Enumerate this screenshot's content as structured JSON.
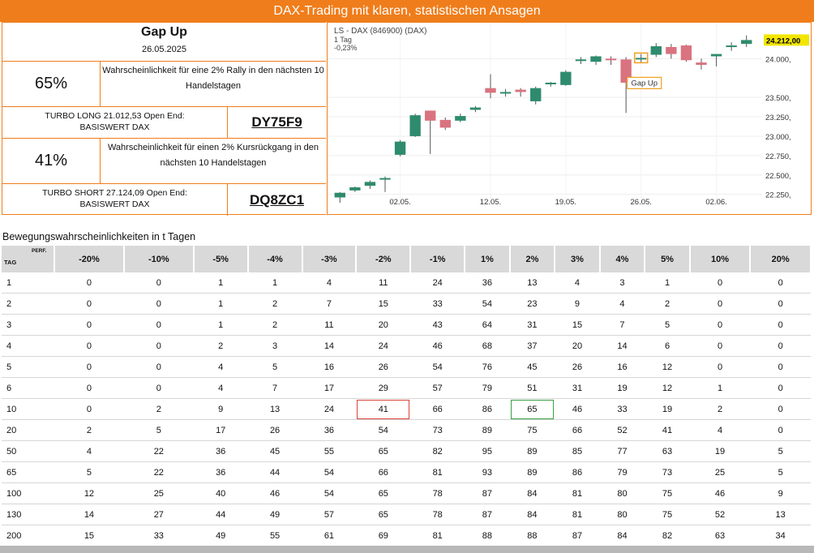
{
  "banner": {
    "title": "DAX-Trading mit klaren, statistischen Ansagen"
  },
  "signal": {
    "title": "Gap Up",
    "date": "26.05.2025",
    "rally_pct": "65%",
    "rally_text": "Wahrscheinlichkeit für eine 2% Rally in den nächsten 10 Handelstagen",
    "long_label": "TURBO LONG 21.012,53 Open End: BASISWERT DAX",
    "long_code": "DY75F9",
    "drop_pct": "41%",
    "drop_text": "Wahrscheinlichkeit für einen 2% Kursrückgang in den nächsten 10 Handelstagen",
    "short_label": "TURBO SHORT 27.124,09 Open End: BASISWERT DAX",
    "short_code": "DQ8ZC1"
  },
  "chart_data": {
    "type": "candlestick",
    "title": "LS - DAX (846900) (DAX)",
    "subtitle": "1 Tag",
    "change": "-0,23%",
    "last_price_label": "24.212,00",
    "annotation": "Gap Up",
    "ylim": [
      22100,
      24380
    ],
    "yticks": [
      24000,
      23500,
      23250,
      23000,
      22750,
      22500,
      22250
    ],
    "ytick_labels": [
      "24.000,",
      "23.500,",
      "23.250,",
      "23.000,",
      "22.750,",
      "22.500,",
      "22.250,"
    ],
    "xtick_labels": [
      {
        "label": "02.05.",
        "index": 4
      },
      {
        "label": "12.05.",
        "index": 10
      },
      {
        "label": "19.05.",
        "index": 15
      },
      {
        "label": "26.05.",
        "index": 20
      },
      {
        "label": "02.06.",
        "index": 25
      }
    ],
    "up_color": "#2e8b6e",
    "down_color": "#d9737f",
    "candles": [
      {
        "o": 22210,
        "h": 22280,
        "l": 22140,
        "c": 22270
      },
      {
        "o": 22300,
        "h": 22350,
        "l": 22280,
        "c": 22340
      },
      {
        "o": 22360,
        "h": 22430,
        "l": 22320,
        "c": 22410
      },
      {
        "o": 22450,
        "h": 22480,
        "l": 22280,
        "c": 22460
      },
      {
        "o": 22760,
        "h": 22950,
        "l": 22740,
        "c": 22930
      },
      {
        "o": 23000,
        "h": 23290,
        "l": 22990,
        "c": 23270
      },
      {
        "o": 23330,
        "h": 23330,
        "l": 22770,
        "c": 23200
      },
      {
        "o": 23210,
        "h": 23240,
        "l": 23080,
        "c": 23110
      },
      {
        "o": 23200,
        "h": 23290,
        "l": 23180,
        "c": 23260
      },
      {
        "o": 23340,
        "h": 23390,
        "l": 23310,
        "c": 23370
      },
      {
        "o": 23620,
        "h": 23800,
        "l": 23490,
        "c": 23560
      },
      {
        "o": 23560,
        "h": 23610,
        "l": 23510,
        "c": 23570
      },
      {
        "o": 23600,
        "h": 23620,
        "l": 23510,
        "c": 23570
      },
      {
        "o": 23450,
        "h": 23640,
        "l": 23410,
        "c": 23620
      },
      {
        "o": 23680,
        "h": 23700,
        "l": 23640,
        "c": 23690
      },
      {
        "o": 23660,
        "h": 23850,
        "l": 23650,
        "c": 23830
      },
      {
        "o": 23980,
        "h": 24020,
        "l": 23930,
        "c": 23990
      },
      {
        "o": 23960,
        "h": 24040,
        "l": 23920,
        "c": 24030
      },
      {
        "o": 24000,
        "h": 24030,
        "l": 23920,
        "c": 23980
      },
      {
        "o": 23990,
        "h": 24020,
        "l": 23300,
        "c": 23690
      },
      {
        "o": 24000,
        "h": 24060,
        "l": 23950,
        "c": 24010
      },
      {
        "o": 24050,
        "h": 24200,
        "l": 24020,
        "c": 24160
      },
      {
        "o": 24150,
        "h": 24190,
        "l": 24000,
        "c": 24060
      },
      {
        "o": 24170,
        "h": 24180,
        "l": 23960,
        "c": 23980
      },
      {
        "o": 23950,
        "h": 24000,
        "l": 23860,
        "c": 23920
      },
      {
        "o": 24030,
        "h": 24050,
        "l": 23900,
        "c": 24060
      },
      {
        "o": 24150,
        "h": 24210,
        "l": 24100,
        "c": 24170
      },
      {
        "o": 24190,
        "h": 24300,
        "l": 24150,
        "c": 24240
      }
    ]
  },
  "table": {
    "caption": "Bewegungswahrscheinlichkeiten in t Tagen",
    "perf_label": "PERF.",
    "tag_label": "TAG",
    "columns": [
      "-20%",
      "-10%",
      "-5%",
      "-4%",
      "-3%",
      "-2%",
      "-1%",
      "1%",
      "2%",
      "3%",
      "4%",
      "5%",
      "10%",
      "20%"
    ],
    "rows": [
      {
        "tag": "1",
        "v": [
          "0",
          "0",
          "1",
          "1",
          "4",
          "11",
          "24",
          "36",
          "13",
          "4",
          "3",
          "1",
          "0",
          "0"
        ]
      },
      {
        "tag": "2",
        "v": [
          "0",
          "0",
          "1",
          "2",
          "7",
          "15",
          "33",
          "54",
          "23",
          "9",
          "4",
          "2",
          "0",
          "0"
        ]
      },
      {
        "tag": "3",
        "v": [
          "0",
          "0",
          "1",
          "2",
          "11",
          "20",
          "43",
          "64",
          "31",
          "15",
          "7",
          "5",
          "0",
          "0"
        ]
      },
      {
        "tag": "4",
        "v": [
          "0",
          "0",
          "2",
          "3",
          "14",
          "24",
          "46",
          "68",
          "37",
          "20",
          "14",
          "6",
          "0",
          "0"
        ]
      },
      {
        "tag": "5",
        "v": [
          "0",
          "0",
          "4",
          "5",
          "16",
          "26",
          "54",
          "76",
          "45",
          "26",
          "16",
          "12",
          "0",
          "0"
        ]
      },
      {
        "tag": "6",
        "v": [
          "0",
          "0",
          "4",
          "7",
          "17",
          "29",
          "57",
          "79",
          "51",
          "31",
          "19",
          "12",
          "1",
          "0"
        ]
      },
      {
        "tag": "10",
        "v": [
          "0",
          "2",
          "9",
          "13",
          "24",
          "41",
          "66",
          "86",
          "65",
          "46",
          "33",
          "19",
          "2",
          "0"
        ]
      },
      {
        "tag": "20",
        "v": [
          "2",
          "5",
          "17",
          "26",
          "36",
          "54",
          "73",
          "89",
          "75",
          "66",
          "52",
          "41",
          "4",
          "0"
        ]
      },
      {
        "tag": "50",
        "v": [
          "4",
          "22",
          "36",
          "45",
          "55",
          "65",
          "82",
          "95",
          "89",
          "85",
          "77",
          "63",
          "19",
          "5"
        ]
      },
      {
        "tag": "65",
        "v": [
          "5",
          "22",
          "36",
          "44",
          "54",
          "66",
          "81",
          "93",
          "89",
          "86",
          "79",
          "73",
          "25",
          "5"
        ]
      },
      {
        "tag": "100",
        "v": [
          "12",
          "25",
          "40",
          "46",
          "54",
          "65",
          "78",
          "87",
          "84",
          "81",
          "80",
          "75",
          "46",
          "9"
        ]
      },
      {
        "tag": "130",
        "v": [
          "14",
          "27",
          "44",
          "49",
          "57",
          "65",
          "78",
          "87",
          "84",
          "81",
          "80",
          "75",
          "52",
          "13"
        ]
      },
      {
        "tag": "200",
        "v": [
          "15",
          "33",
          "49",
          "55",
          "61",
          "69",
          "81",
          "88",
          "88",
          "87",
          "84",
          "82",
          "63",
          "34"
        ]
      }
    ]
  }
}
